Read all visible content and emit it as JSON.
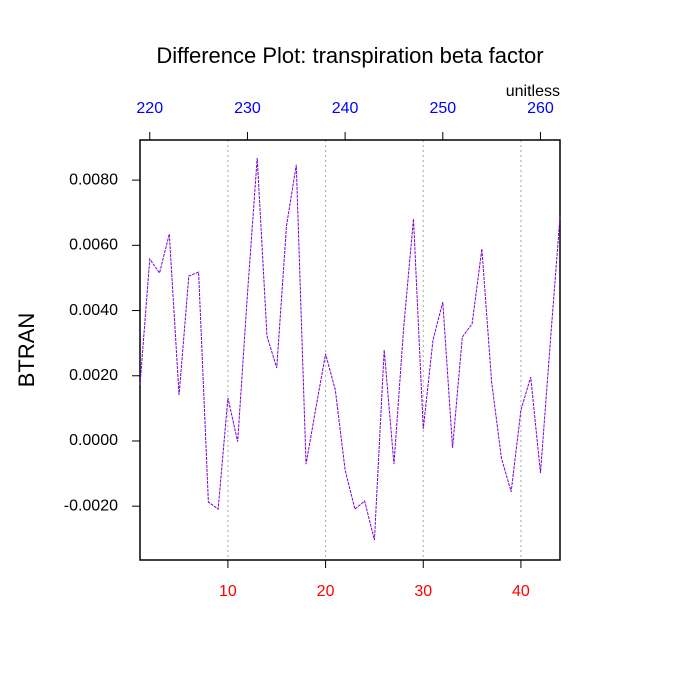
{
  "chart_data": {
    "type": "line",
    "title": "Difference Plot: transpiration beta factor",
    "subtitle": "unitless",
    "ylabel": "BTRAN",
    "x": [
      1,
      2,
      3,
      4,
      5,
      6,
      7,
      8,
      9,
      10,
      11,
      12,
      13,
      14,
      15,
      16,
      17,
      18,
      19,
      20,
      21,
      22,
      23,
      24,
      25,
      26,
      27,
      28,
      29,
      30,
      31,
      32,
      33,
      34,
      35,
      36,
      37,
      38,
      39,
      40,
      41,
      42,
      43,
      44
    ],
    "series": [
      {
        "color": "#7a00d6",
        "values": [
          0.00172,
          0.00558,
          0.00515,
          0.00635,
          0.00141,
          0.00506,
          0.00518,
          -0.00187,
          -0.00209,
          0.00132,
          -2e-05,
          0.0045,
          0.00868,
          0.00322,
          0.00224,
          0.0066,
          0.00847,
          -0.00071,
          0.001,
          0.00267,
          0.00156,
          -0.00089,
          -0.00209,
          -0.00184,
          -0.00304,
          0.00279,
          -0.00071,
          0.0035,
          0.00681,
          0.00037,
          0.0031,
          0.00426,
          -0.00021,
          0.00319,
          0.00359,
          0.00589,
          0.00181,
          -0.00052,
          -0.00156,
          0.00095,
          0.00196,
          -0.00098,
          0.003,
          0.00687
        ]
      }
    ],
    "xlim": [
      1,
      44
    ],
    "xticks": [
      10,
      20,
      30,
      40
    ],
    "xtick_color": "#ff0000",
    "x2lim": [
      219,
      262
    ],
    "x2ticks": [
      220,
      230,
      240,
      250,
      260
    ],
    "x2tick_color": "#0000ff",
    "ylim": [
      -0.00365,
      0.00923
    ],
    "yticks": [
      {
        "value": -0.002,
        "label": "-0.0020"
      },
      {
        "value": 0,
        "label": "0.0000"
      },
      {
        "value": 0.002,
        "label": "0.0020"
      },
      {
        "value": 0.004,
        "label": "0.0040"
      },
      {
        "value": 0.006,
        "label": "0.0060"
      },
      {
        "value": 0.008,
        "label": "0.0080"
      }
    ],
    "grid": true
  }
}
